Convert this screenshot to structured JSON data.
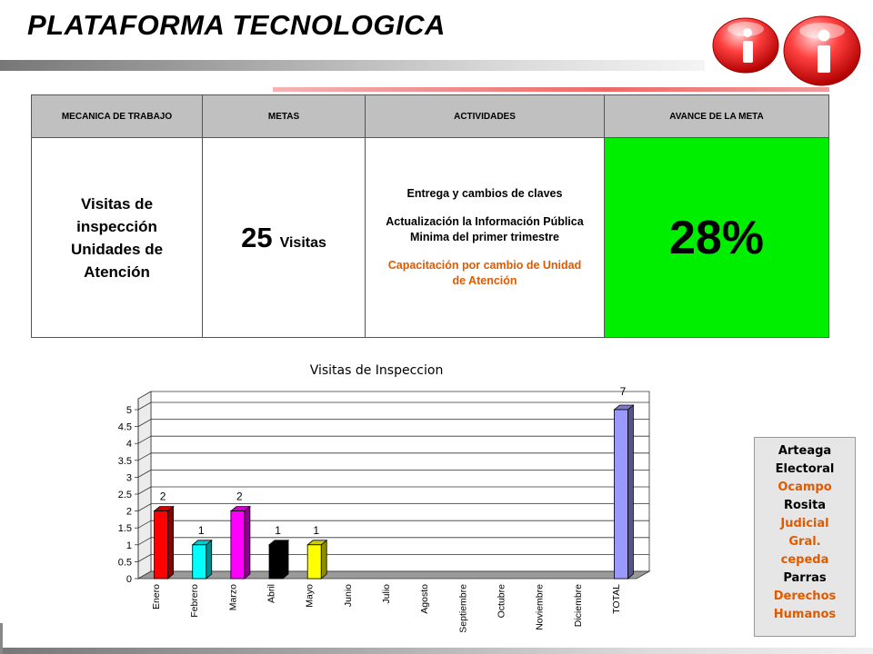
{
  "header": {
    "title": "PLATAFORMA TECNOLOGICA"
  },
  "table": {
    "headers": [
      "MECANICA DE TRABAJO",
      "METAS",
      "ACTIVIDADES",
      "AVANCE DE LA META"
    ],
    "mecanica": "Visitas de inspección Unidades de Atención",
    "meta_value": "25",
    "meta_unit": "Visitas",
    "activities": [
      {
        "text": "Entrega y cambios de claves",
        "color": "#000000"
      },
      {
        "text": "Actualización la Información Pública Minima del primer trimestre",
        "color": "#000000"
      },
      {
        "text": "Capacitación por cambio de Unidad de Atención",
        "color": "#e05a00"
      }
    ],
    "avance": "28%",
    "avance_color": "#00ee00"
  },
  "chart_data": {
    "type": "bar",
    "title": "Visitas de Inspeccion",
    "categories": [
      "Enero",
      "Febrero",
      "Marzo",
      "Abril",
      "Mayo",
      "Junio",
      "Julio",
      "Agosto",
      "Septiembre",
      "Octubre",
      "Noviembre",
      "Diciembre",
      "TOTAL"
    ],
    "values": [
      2,
      1,
      2,
      1,
      1,
      0,
      0,
      0,
      0,
      0,
      0,
      0,
      7
    ],
    "data_labels": [
      "2",
      "1",
      "2",
      "1",
      "1",
      "",
      "",
      "",
      "",
      "",
      "",
      "",
      "7"
    ],
    "colors": [
      "#ff0000",
      "#00ffff",
      "#ff00ff",
      "#000000",
      "#ffff00",
      "",
      "",
      "",
      "",
      "",
      "",
      "",
      "#9999ff"
    ],
    "yticks": [
      "0",
      "0.5",
      "1",
      "1.5",
      "2",
      "2.5",
      "3",
      "3.5",
      "4",
      "4.5",
      "5"
    ],
    "ylim": [
      0,
      5
    ],
    "grid": true,
    "xlabel": "",
    "ylabel": ""
  },
  "legend_box": {
    "items": [
      {
        "text": "Arteaga",
        "color": "#000000"
      },
      {
        "text": "Electoral",
        "color": "#000000"
      },
      {
        "text": "Ocampo",
        "color": "#e05a00"
      },
      {
        "text": "Rosita",
        "color": "#000000"
      },
      {
        "text": "Judicial",
        "color": "#e05a00"
      },
      {
        "text": "Gral.",
        "color": "#e05a00"
      },
      {
        "text": "cepeda",
        "color": "#e05a00"
      },
      {
        "text": "Parras",
        "color": "#000000"
      },
      {
        "text": "Derechos",
        "color": "#e05a00"
      },
      {
        "text": "Humanos",
        "color": "#e05a00"
      }
    ]
  }
}
